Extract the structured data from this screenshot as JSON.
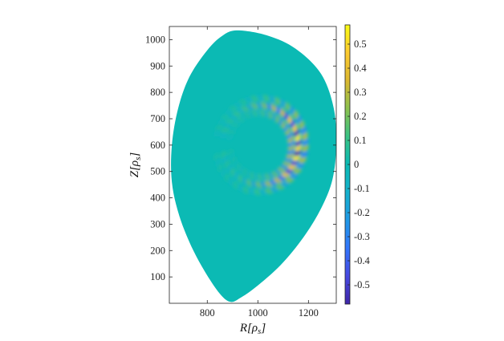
{
  "chart_data": {
    "type": "heatmap",
    "title": "",
    "xlabel": "R[ρs]",
    "ylabel": "Z[ρs]",
    "xlim": [
      650,
      1310
    ],
    "ylim": [
      0,
      1050
    ],
    "x_ticks": [
      800,
      1000,
      1200
    ],
    "y_ticks": [
      100,
      200,
      300,
      400,
      500,
      600,
      700,
      800,
      900,
      1000
    ],
    "colorbar": {
      "range": [
        -0.58,
        0.58
      ],
      "ticks": [
        0.5,
        0.4,
        0.3,
        0.2,
        0.1,
        0,
        -0.1,
        -0.2,
        -0.3,
        -0.4,
        -0.5
      ],
      "tick_labels": [
        "0.5",
        "0.4",
        "0.3",
        "0.2",
        "0.1",
        "0",
        "-0.1",
        "-0.2",
        "-0.3",
        "-0.4",
        "-0.5"
      ],
      "colormap": "parula"
    },
    "domain_outline": [
      [
        920,
        1035
      ],
      [
        1040,
        1015
      ],
      [
        1150,
        965
      ],
      [
        1250,
        870
      ],
      [
        1300,
        740
      ],
      [
        1310,
        600
      ],
      [
        1295,
        470
      ],
      [
        1250,
        360
      ],
      [
        1180,
        250
      ],
      [
        1090,
        145
      ],
      [
        990,
        60
      ],
      [
        930,
        20
      ],
      [
        895,
        5
      ],
      [
        860,
        25
      ],
      [
        810,
        90
      ],
      [
        745,
        200
      ],
      [
        690,
        330
      ],
      [
        660,
        460
      ],
      [
        660,
        600
      ],
      [
        685,
        740
      ],
      [
        730,
        860
      ],
      [
        800,
        960
      ],
      [
        860,
        1015
      ]
    ],
    "ring_center": [
      1010,
      600
    ],
    "ring_radius": 150,
    "ring_width": 80,
    "background_value": 0,
    "peak_value": 0.56,
    "trough_value": -0.57
  }
}
